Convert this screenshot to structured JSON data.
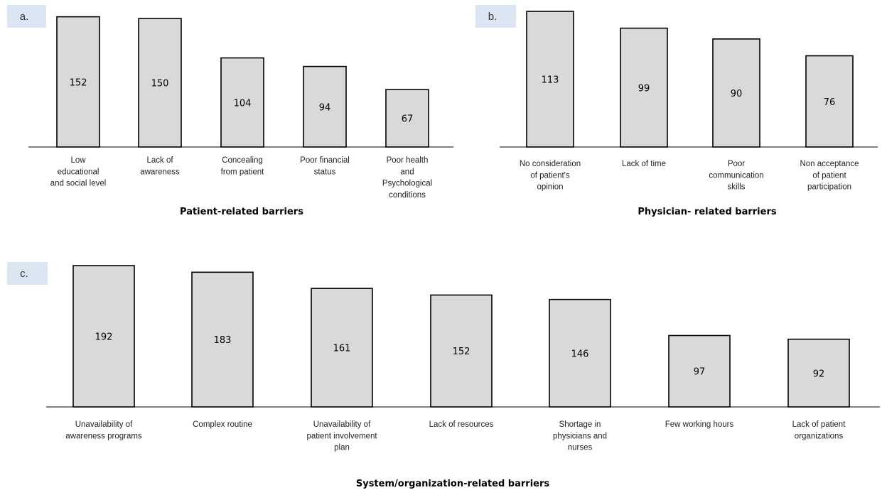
{
  "chart_data": [
    {
      "type": "bar",
      "panel_label": "a.",
      "xlabel": "Patient-related barriers",
      "categories": [
        [
          "Low",
          "educational",
          "and social level"
        ],
        [
          "Lack of",
          "awareness"
        ],
        [
          "Concealing",
          "from patient"
        ],
        [
          "Poor financial",
          "status"
        ],
        [
          "Poor health",
          "and",
          "Psychological",
          "conditions"
        ]
      ],
      "values": [
        152,
        150,
        104,
        94,
        67
      ],
      "data_labels": [
        "152",
        "150",
        "104",
        "94",
        "67"
      ],
      "bar_color": "#d9d9d9",
      "ylim": [
        0,
        155
      ],
      "grid": false
    },
    {
      "type": "bar",
      "panel_label": "b.",
      "xlabel": "Physician- related barriers",
      "categories": [
        [
          "No consideration",
          "of patient's",
          "opinion"
        ],
        [
          "Lack of time"
        ],
        [
          "Poor",
          "communication",
          "skills"
        ],
        [
          "Non acceptance",
          "of patient",
          "participation"
        ]
      ],
      "values": [
        113,
        99,
        90,
        76
      ],
      "data_labels": [
        "113",
        "99",
        "90",
        "76"
      ],
      "bar_color": "#d9d9d9",
      "ylim": [
        0,
        113
      ],
      "grid": false
    },
    {
      "type": "bar",
      "panel_label": "c.",
      "xlabel": "System/organization-related barriers",
      "categories": [
        [
          "Unavailability of",
          "awareness programs"
        ],
        [
          "Complex routine"
        ],
        [
          "Unavailability of",
          "patient involvement",
          "plan"
        ],
        [
          "Lack of resources"
        ],
        [
          "Shortage in",
          "physicians and",
          "nurses"
        ],
        [
          "Few working hours"
        ],
        [
          "Lack of patient",
          "organizations"
        ]
      ],
      "values": [
        192,
        183,
        161,
        152,
        146,
        97,
        92
      ],
      "data_labels": [
        "192",
        "183",
        "161",
        "152",
        "146",
        "97",
        "92"
      ],
      "bar_color": "#d9d9d9",
      "ylim": [
        0,
        192
      ],
      "grid": false
    }
  ]
}
